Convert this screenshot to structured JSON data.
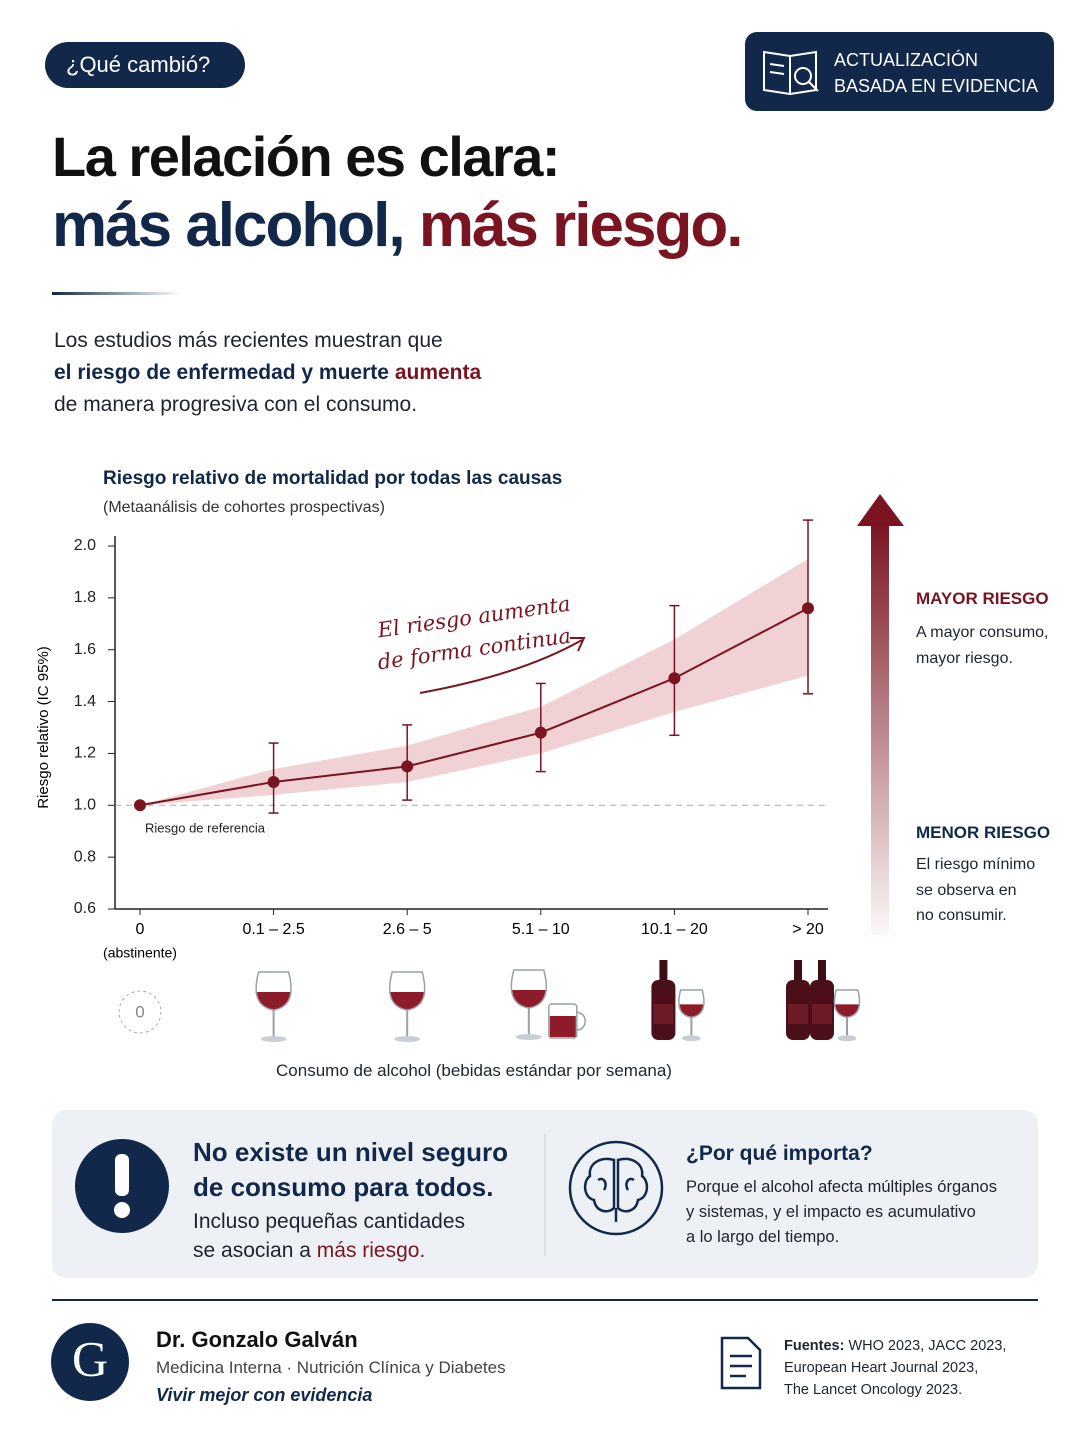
{
  "badge": "¿Qué cambió?",
  "update_badge": [
    "ACTUALIZACIÓN",
    "BASADA EN EVIDENCIA"
  ],
  "headline": {
    "line1": "La relación es clara:",
    "part_a": "más alcohol,",
    "part_b": "más riesgo."
  },
  "intro": {
    "line1": "Los estudios más recientes muestran que",
    "highlight": "el riesgo de enfermedad y muerte",
    "emphasis": "aumenta",
    "line3": "de manera progresiva con el consumo."
  },
  "chart_data": {
    "type": "line",
    "title": "Riesgo relativo de mortalidad por todas las causas",
    "subtitle": "(Metaanálisis de cohortes prospectivas)",
    "y_label": "Riesgo relativo (IC 95%)",
    "x_label": "Consumo de alcohol (bebidas estándar por semana)",
    "categories": [
      "0",
      "0.1 – 2.5",
      "2.6 – 5",
      "5.1 – 10",
      "10.1 – 20",
      "> 20"
    ],
    "category_notes": [
      "(abstinente)",
      null,
      null,
      null,
      null,
      null
    ],
    "values": [
      1.0,
      1.09,
      1.15,
      1.28,
      1.49,
      1.76
    ],
    "error_low": [
      null,
      0.97,
      1.02,
      1.13,
      1.27,
      1.43
    ],
    "error_high": [
      null,
      1.24,
      1.31,
      1.47,
      1.77,
      2.1
    ],
    "band_low": [
      1.0,
      1.04,
      1.09,
      1.2,
      1.36,
      1.5
    ],
    "band_high": [
      1.0,
      1.14,
      1.23,
      1.38,
      1.64,
      1.95
    ],
    "color": "#7a1421",
    "band_color": "#e6b3b8",
    "ylim": [
      0.6,
      2.0
    ],
    "yticks": [
      0.6,
      0.8,
      {
        "value": 1.0,
        "label": "1.0"
      },
      1.2,
      1.4,
      1.6,
      1.8,
      {
        "value": 2.0,
        "label": "2.0"
      }
    ],
    "reference_line": {
      "value": 1.0,
      "label": "Riesgo de referencia"
    },
    "annotation": [
      "El riesgo aumenta",
      "de forma continua"
    ],
    "grid": false
  },
  "icons": {
    "zero": "0"
  },
  "risk_scale": {
    "high_title": "MAYOR RIESGO",
    "high_text": [
      "A mayor consumo,",
      "mayor riesgo."
    ],
    "low_title": "MENOR RIESGO",
    "low_text": [
      "El riesgo mínimo",
      "se observa en",
      "no consumir."
    ]
  },
  "callout": {
    "title": [
      "No existe un nivel seguro",
      "de consumo para todos."
    ],
    "text_line1": "Incluso pequeñas cantidades",
    "text_line2": "se asocian a",
    "text_emphasis": "más riesgo.",
    "why_title": "¿Por qué importa?",
    "why_text": [
      "Porque el alcohol afecta múltiples órganos",
      "y sistemas, y el impacto es acumulativo",
      "a lo largo del tiempo."
    ]
  },
  "footer": {
    "logo": "G",
    "name": "Dr. Gonzalo Galván",
    "specialty": "Medicina Interna · Nutrición Clínica y Diabetes",
    "tagline": "Vivir mejor con evidencia",
    "sources_label": "Fuentes:",
    "sources": [
      "WHO 2023, JACC 2023,",
      "European Heart Journal 2023,",
      "The Lancet Oncology 2023."
    ]
  }
}
